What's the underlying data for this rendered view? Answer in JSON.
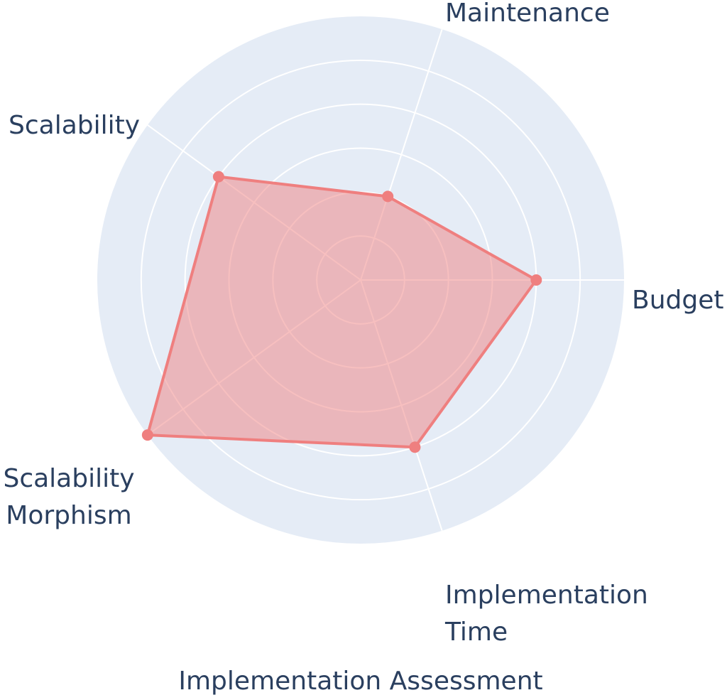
{
  "chart_data": {
    "type": "radar",
    "title": "Implementation Assessment",
    "categories": [
      "Budget",
      "Maintenance",
      "Scalability",
      "Scalability Morphism",
      "Implementation Time"
    ],
    "category_lines": [
      [
        "Budget"
      ],
      [
        "Maintenance"
      ],
      [
        "Scalability"
      ],
      [
        "Scalability",
        "Morphism"
      ],
      [
        "Implementation",
        "Time"
      ]
    ],
    "series": [
      {
        "name": "Assessment",
        "values": [
          4,
          2,
          4,
          6,
          4
        ]
      }
    ],
    "radial_range": [
      0,
      6
    ],
    "radial_gridlines": [
      1,
      2,
      3,
      4,
      5
    ],
    "grid": true,
    "legend": "none",
    "colors": {
      "background": "#e5ecf6",
      "line": "#ef7f7f",
      "fill": "rgba(239,127,127,0.5)",
      "grid": "#ffffff",
      "text": "#2a3f5f"
    }
  }
}
